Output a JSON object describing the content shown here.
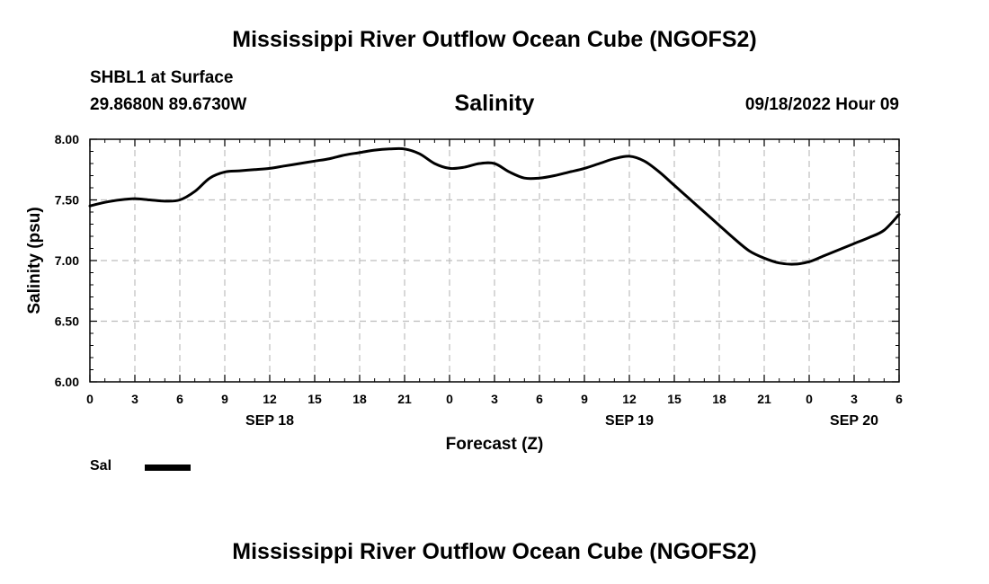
{
  "page": {
    "main_title": "Mississippi River Outflow Ocean Cube (NGOFS2)",
    "footer_title": "Mississippi River Outflow Ocean Cube (NGOFS2)",
    "station": "SHBL1 at Surface",
    "coordinates": "29.8680N  89.6730W",
    "variable_title": "Salinity",
    "forecast_time": "09/18/2022 Hour 09"
  },
  "chart_data": {
    "type": "line",
    "title": "Salinity",
    "xlabel": "Forecast (Z)",
    "ylabel": "Salinity (psu)",
    "xlim": [
      0,
      54
    ],
    "ylim": [
      6.0,
      8.0
    ],
    "y_ticks": [
      6.0,
      6.5,
      7.0,
      7.5,
      8.0
    ],
    "y_tick_labels": [
      "6.00",
      "6.50",
      "7.00",
      "7.50",
      "8.00"
    ],
    "x_ticks": [
      0,
      3,
      6,
      9,
      12,
      15,
      18,
      21,
      24,
      27,
      30,
      33,
      36,
      39,
      42,
      45,
      48,
      51,
      54
    ],
    "x_tick_labels": [
      "0",
      "3",
      "6",
      "9",
      "12",
      "15",
      "18",
      "21",
      "0",
      "3",
      "6",
      "9",
      "12",
      "15",
      "18",
      "21",
      "0",
      "3",
      "6"
    ],
    "date_labels": [
      {
        "hour": 12,
        "label": "SEP 18"
      },
      {
        "hour": 36,
        "label": "SEP 19"
      },
      {
        "hour": 51,
        "label": "SEP 20"
      }
    ],
    "grid": true,
    "legend": {
      "position": "bottom-left",
      "label": "Sal"
    },
    "series": [
      {
        "name": "Sal",
        "color": "#000000",
        "x": [
          0,
          1,
          2,
          3,
          4,
          5,
          6,
          7,
          8,
          9,
          10,
          11,
          12,
          13,
          14,
          15,
          16,
          17,
          18,
          19,
          20,
          21,
          22,
          23,
          24,
          25,
          26,
          27,
          28,
          29,
          30,
          31,
          32,
          33,
          34,
          35,
          36,
          37,
          38,
          39,
          40,
          41,
          42,
          43,
          44,
          45,
          46,
          47,
          48,
          49,
          50,
          51,
          52,
          53,
          54
        ],
        "values": [
          7.45,
          7.48,
          7.5,
          7.51,
          7.5,
          7.49,
          7.5,
          7.57,
          7.68,
          7.73,
          7.74,
          7.75,
          7.76,
          7.78,
          7.8,
          7.82,
          7.84,
          7.87,
          7.89,
          7.91,
          7.92,
          7.92,
          7.88,
          7.8,
          7.76,
          7.77,
          7.8,
          7.8,
          7.73,
          7.68,
          7.68,
          7.7,
          7.73,
          7.76,
          7.8,
          7.84,
          7.86,
          7.82,
          7.73,
          7.62,
          7.51,
          7.4,
          7.29,
          7.18,
          7.08,
          7.02,
          6.98,
          6.97,
          6.99,
          7.04,
          7.09,
          7.14,
          7.19,
          7.25,
          7.38
        ]
      }
    ]
  }
}
